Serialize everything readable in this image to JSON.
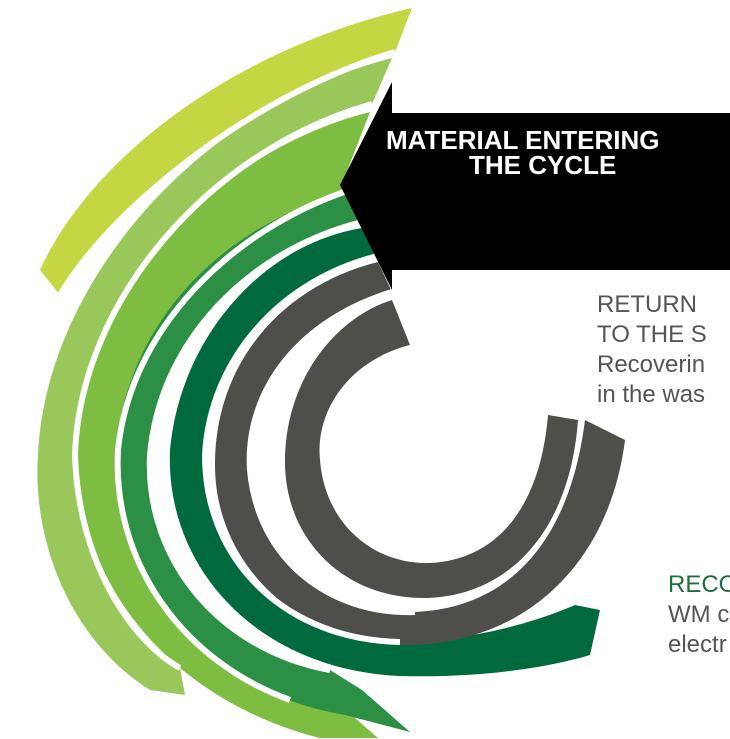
{
  "diagram": {
    "arrow": {
      "line1": "MATERIAL ENTERING",
      "line2": "THE CYCLE"
    },
    "return_callout": {
      "line1": "RETURN",
      "line2": "TO THE S",
      "line3": "Recoverin",
      "line4": "in the was"
    },
    "recycle_callout": {
      "line1": "RECO",
      "line2": "WM c",
      "line3": "electr"
    }
  },
  "colors": {
    "ring_1": "#c4d742",
    "ring_2": "#9ac75a",
    "ring_3": "#7dbe42",
    "ring_4": "#2b8f45",
    "ring_5": "#006a3e",
    "ring_6": "#4e4e4a",
    "ring_7": "#4e4e4a",
    "arrow": "#000000",
    "callout_text": "#555555",
    "recycle_heading": "#1f6d3a"
  }
}
